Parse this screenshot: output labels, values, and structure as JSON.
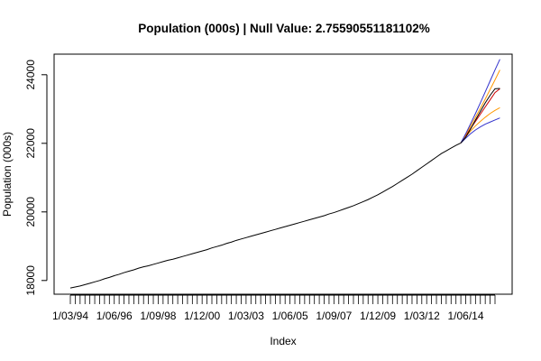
{
  "chart_data": {
    "type": "line",
    "title": "Population (000s) | Null Value: 2.75590551181102%",
    "xlabel": "Index",
    "ylabel": "Population (000s)",
    "x_tick_labels": [
      "1/03/94",
      "1/06/96",
      "1/09/98",
      "1/12/00",
      "1/03/03",
      "1/06/05",
      "1/09/07",
      "1/12/09",
      "1/03/12",
      "1/06/14"
    ],
    "y_ticks": [
      18000,
      20000,
      22000,
      24000
    ],
    "ylim": [
      17600,
      24600
    ],
    "n_index": 88,
    "grid": false,
    "series": [
      {
        "role": "actual",
        "color": "#000000",
        "start_index": 0,
        "values": [
          17780,
          17810,
          17840,
          17880,
          17920,
          17960,
          18000,
          18050,
          18090,
          18140,
          18180,
          18230,
          18270,
          18310,
          18360,
          18400,
          18430,
          18470,
          18510,
          18550,
          18590,
          18620,
          18660,
          18700,
          18740,
          18780,
          18820,
          18860,
          18900,
          18950,
          18990,
          19030,
          19080,
          19120,
          19170,
          19210,
          19250,
          19290,
          19330,
          19370,
          19410,
          19450,
          19490,
          19530,
          19570,
          19610,
          19650,
          19690,
          19730,
          19770,
          19810,
          19850,
          19890,
          19940,
          19980,
          20030,
          20080,
          20130,
          20180,
          20240,
          20300,
          20360,
          20430,
          20500,
          20580,
          20660,
          20740,
          20830,
          20920,
          21010,
          21100,
          21200,
          21300,
          21400,
          21500,
          21600,
          21700,
          21780,
          21860,
          21940,
          22010
        ]
      },
      {
        "role": "forecast",
        "color": "#cc0000",
        "start_index": 80,
        "values": [
          22010,
          22220,
          22430,
          22640,
          22850,
          23060,
          23270,
          23480,
          23590
        ]
      },
      {
        "role": "forecast-upper-80",
        "color": "#ff9900",
        "start_index": 80,
        "values": [
          22010,
          22250,
          22500,
          22760,
          23020,
          23290,
          23570,
          23850,
          24140
        ]
      },
      {
        "role": "forecast-lower-80",
        "color": "#ff9900",
        "start_index": 80,
        "values": [
          22010,
          22190,
          22360,
          22510,
          22640,
          22760,
          22870,
          22960,
          23040
        ]
      },
      {
        "role": "forecast-upper-95",
        "color": "#3333cc",
        "start_index": 80,
        "values": [
          22010,
          22280,
          22570,
          22870,
          23180,
          23500,
          23820,
          24140,
          24450
        ]
      },
      {
        "role": "forecast-lower-95",
        "color": "#3333cc",
        "start_index": 80,
        "values": [
          22010,
          22150,
          22280,
          22390,
          22480,
          22560,
          22620,
          22680,
          22740
        ]
      },
      {
        "role": "actual-tail",
        "color": "#000000",
        "start_index": 80,
        "values": [
          22010,
          22180,
          22420,
          22680,
          22930,
          23180,
          23400,
          23590,
          23600
        ]
      }
    ]
  }
}
